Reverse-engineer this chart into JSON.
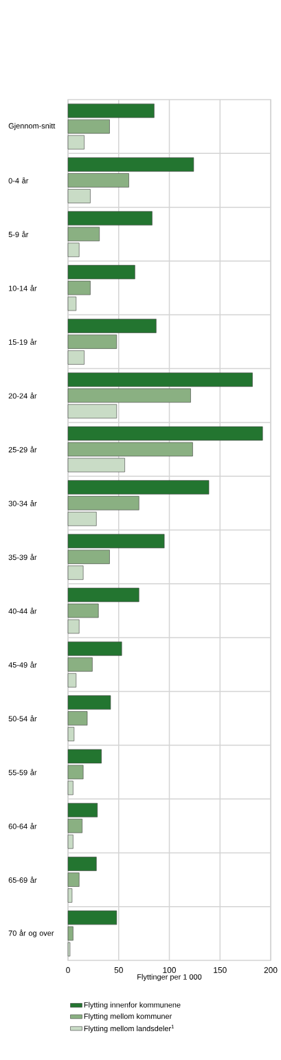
{
  "chart_data": {
    "type": "bar",
    "orientation": "horizontal",
    "xlabel": "Flyttinger per 1 000",
    "categories": [
      "Gjennom-snitt",
      "0-4 år",
      "5-9 år",
      "10-14 år",
      "15-19 år",
      "20-24 år",
      "25-29 år",
      "30-34 år",
      "35-39 år",
      "40-44 år",
      "45-49 år",
      "50-54 år",
      "55-59 år",
      "60-64 år",
      "65-69 år",
      "70 år og over"
    ],
    "series": [
      {
        "name": "Flytting innenfor kommunene",
        "color": "#237530",
        "values": [
          85,
          124,
          83,
          66,
          87,
          182,
          192,
          139,
          95,
          70,
          53,
          42,
          33,
          29,
          28,
          48
        ]
      },
      {
        "name": "Flytting mellom kommuner",
        "color": "#8ab082",
        "values": [
          41,
          60,
          31,
          22,
          48,
          121,
          123,
          70,
          41,
          30,
          24,
          19,
          15,
          14,
          11,
          5
        ]
      },
      {
        "name": "Flytting mellom landsdeler$^{1}$",
        "color": "#c9dcc6",
        "values": [
          16,
          22,
          11,
          8,
          16,
          48,
          56,
          28,
          15,
          11,
          8,
          6,
          5,
          5,
          4,
          2
        ]
      }
    ],
    "xlim": [
      0,
      200
    ],
    "xticks": [
      0,
      50,
      100,
      150,
      200
    ],
    "grid": true,
    "legend": "bottom"
  }
}
